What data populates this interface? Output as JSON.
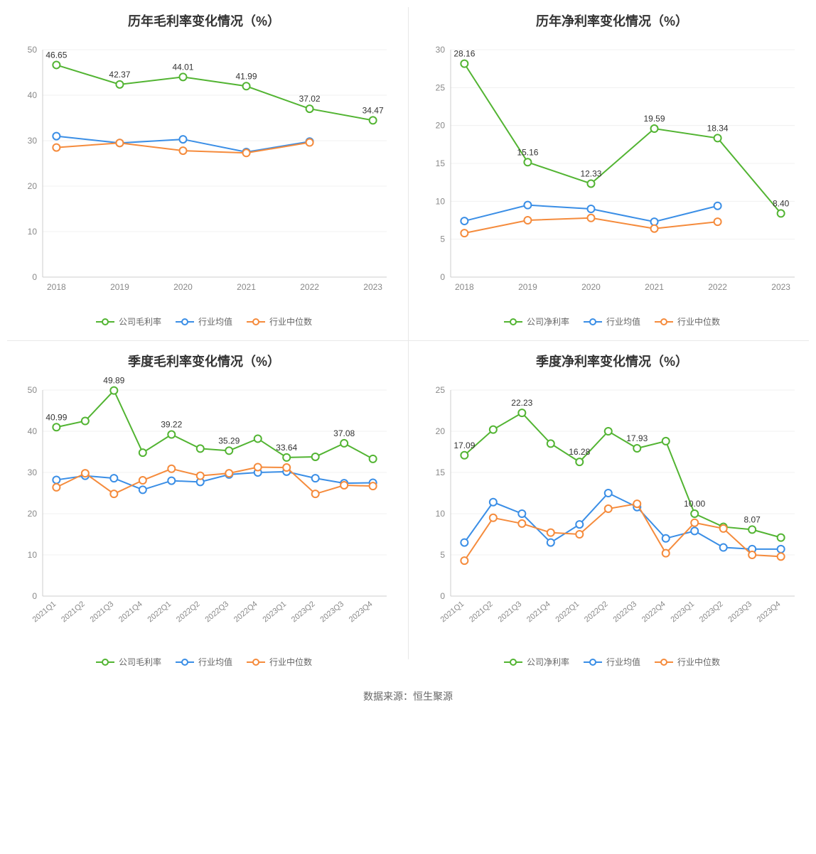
{
  "footer_text": "数据来源：恒生聚源",
  "colors": {
    "green": "#52b432",
    "blue": "#3a8ee6",
    "orange": "#f58b3c",
    "axis": "#cccccc",
    "grid": "#f0f0f0",
    "text": "#888888",
    "label": "#333333",
    "bg": "#ffffff"
  },
  "line_width": 2,
  "marker_radius": 5,
  "title_fontsize": 18,
  "tick_fontsize": 12,
  "charts": [
    {
      "id": "annual_gross",
      "title": "历年毛利率变化情况（%）",
      "x_labels": [
        "2018",
        "2019",
        "2020",
        "2021",
        "2022",
        "2023"
      ],
      "x_rotated": false,
      "ylim": [
        0,
        50
      ],
      "ytick_step": 10,
      "series": [
        {
          "name": "公司毛利率",
          "color_key": "green",
          "values": [
            46.65,
            42.37,
            44.01,
            41.99,
            37.02,
            34.47
          ],
          "show_labels": true
        },
        {
          "name": "行业均值",
          "color_key": "blue",
          "values": [
            31.0,
            29.5,
            30.3,
            27.5,
            29.8,
            null
          ],
          "show_labels": false
        },
        {
          "name": "行业中位数",
          "color_key": "orange",
          "values": [
            28.5,
            29.5,
            27.8,
            27.3,
            29.6,
            null
          ],
          "show_labels": false
        }
      ]
    },
    {
      "id": "annual_net",
      "title": "历年净利率变化情况（%）",
      "x_labels": [
        "2018",
        "2019",
        "2020",
        "2021",
        "2022",
        "2023"
      ],
      "x_rotated": false,
      "ylim": [
        0,
        30
      ],
      "ytick_step": 5,
      "series": [
        {
          "name": "公司净利率",
          "color_key": "green",
          "values": [
            28.16,
            15.16,
            12.33,
            19.59,
            18.34,
            8.4
          ],
          "show_labels": true
        },
        {
          "name": "行业均值",
          "color_key": "blue",
          "values": [
            7.4,
            9.5,
            9.0,
            7.3,
            9.4,
            null
          ],
          "show_labels": false
        },
        {
          "name": "行业中位数",
          "color_key": "orange",
          "values": [
            5.8,
            7.5,
            7.8,
            6.4,
            7.3,
            null
          ],
          "show_labels": false
        }
      ]
    },
    {
      "id": "quarter_gross",
      "title": "季度毛利率变化情况（%）",
      "x_labels": [
        "2021Q1",
        "2021Q2",
        "2021Q3",
        "2021Q4",
        "2022Q1",
        "2022Q2",
        "2022Q3",
        "2022Q4",
        "2023Q1",
        "2023Q2",
        "2023Q3",
        "2023Q4"
      ],
      "x_rotated": true,
      "ylim": [
        0,
        50
      ],
      "ytick_step": 10,
      "series": [
        {
          "name": "公司毛利率",
          "color_key": "green",
          "values": [
            40.99,
            42.5,
            49.89,
            34.8,
            39.22,
            35.8,
            35.29,
            38.2,
            33.64,
            33.8,
            37.08,
            33.3
          ],
          "show_labels": true,
          "label_indices": [
            0,
            2,
            4,
            6,
            8,
            10
          ]
        },
        {
          "name": "行业均值",
          "color_key": "blue",
          "values": [
            28.2,
            29.2,
            28.6,
            25.8,
            28.0,
            27.7,
            29.5,
            30.0,
            30.2,
            28.6,
            27.4,
            27.5
          ],
          "show_labels": false
        },
        {
          "name": "行业中位数",
          "color_key": "orange",
          "values": [
            26.4,
            29.8,
            24.8,
            28.1,
            30.9,
            29.2,
            29.8,
            31.3,
            31.2,
            24.8,
            26.9,
            26.7
          ],
          "show_labels": false
        }
      ]
    },
    {
      "id": "quarter_net",
      "title": "季度净利率变化情况（%）",
      "x_labels": [
        "2021Q1",
        "2021Q2",
        "2021Q3",
        "2021Q4",
        "2022Q1",
        "2022Q2",
        "2022Q3",
        "2022Q4",
        "2023Q1",
        "2023Q2",
        "2023Q3",
        "2023Q4"
      ],
      "x_rotated": true,
      "ylim": [
        0,
        25
      ],
      "ytick_step": 5,
      "series": [
        {
          "name": "公司净利率",
          "color_key": "green",
          "values": [
            17.09,
            20.2,
            22.23,
            18.5,
            16.28,
            20.0,
            17.93,
            18.8,
            10.0,
            8.4,
            8.07,
            7.1
          ],
          "show_labels": true,
          "label_indices": [
            0,
            2,
            4,
            6,
            8,
            10
          ]
        },
        {
          "name": "行业均值",
          "color_key": "blue",
          "values": [
            6.5,
            11.4,
            10.0,
            6.5,
            8.7,
            12.5,
            10.8,
            7.0,
            7.9,
            5.9,
            5.7,
            5.7
          ],
          "show_labels": false
        },
        {
          "name": "行业中位数",
          "color_key": "orange",
          "values": [
            4.3,
            9.5,
            8.8,
            7.7,
            7.5,
            10.6,
            11.2,
            5.2,
            8.9,
            8.2,
            5.0,
            4.8
          ],
          "show_labels": false
        }
      ]
    }
  ]
}
